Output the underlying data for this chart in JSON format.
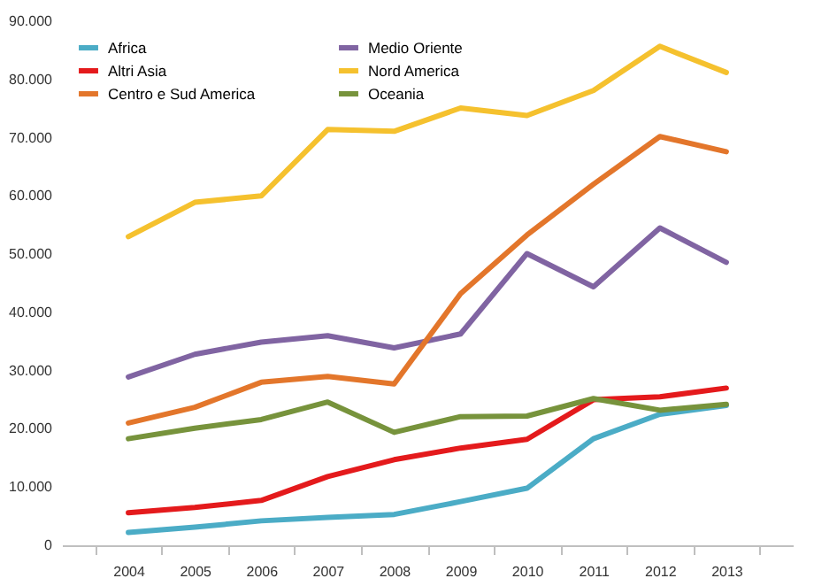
{
  "chart_data": {
    "type": "line",
    "categories": [
      "2004",
      "2005",
      "2006",
      "2007",
      "2008",
      "2009",
      "2010",
      "2011",
      "2012",
      "2013"
    ],
    "ylim": [
      0,
      90000
    ],
    "yticks": [
      {
        "value": 0,
        "label": "0"
      },
      {
        "value": 10000,
        "label": "10.000"
      },
      {
        "value": 20000,
        "label": "20.000"
      },
      {
        "value": 30000,
        "label": "30.000"
      },
      {
        "value": 40000,
        "label": "40.000"
      },
      {
        "value": 50000,
        "label": "50.000"
      },
      {
        "value": 60000,
        "label": "60.000"
      },
      {
        "value": 70000,
        "label": "70.000"
      },
      {
        "value": 80000,
        "label": "80.000"
      },
      {
        "value": 90000,
        "label": "90.000"
      }
    ],
    "grid": false,
    "legend": "top left",
    "marker": "none",
    "line_style": "solid",
    "series": [
      {
        "name": "Africa",
        "color": "#4bacc6",
        "values": [
          2200,
          3100,
          4200,
          4800,
          5300,
          7500,
          9800,
          18300,
          22500,
          24000
        ]
      },
      {
        "name": "Medio Oriente",
        "color": "#8064a2",
        "values": [
          28900,
          32800,
          34900,
          36000,
          33900,
          36300,
          50100,
          44400,
          54500,
          48600
        ]
      },
      {
        "name": "Altri Asia",
        "color": "#e41a1c",
        "values": [
          5600,
          6500,
          7700,
          11800,
          14700,
          16700,
          18200,
          25000,
          25500,
          27000
        ]
      },
      {
        "name": "Nord America",
        "color": "#f5c12e",
        "values": [
          53000,
          58900,
          60000,
          71400,
          71100,
          75100,
          73800,
          78100,
          85700,
          81200
        ]
      },
      {
        "name": "Centro e Sud America",
        "color": "#e3762b",
        "values": [
          21000,
          23700,
          28000,
          29000,
          27700,
          43200,
          53300,
          62000,
          70200,
          67600
        ]
      },
      {
        "name": "Oceania",
        "color": "#77933c",
        "values": [
          18300,
          20100,
          21600,
          24600,
          19400,
          22100,
          22200,
          25200,
          23200,
          24200
        ]
      }
    ]
  }
}
